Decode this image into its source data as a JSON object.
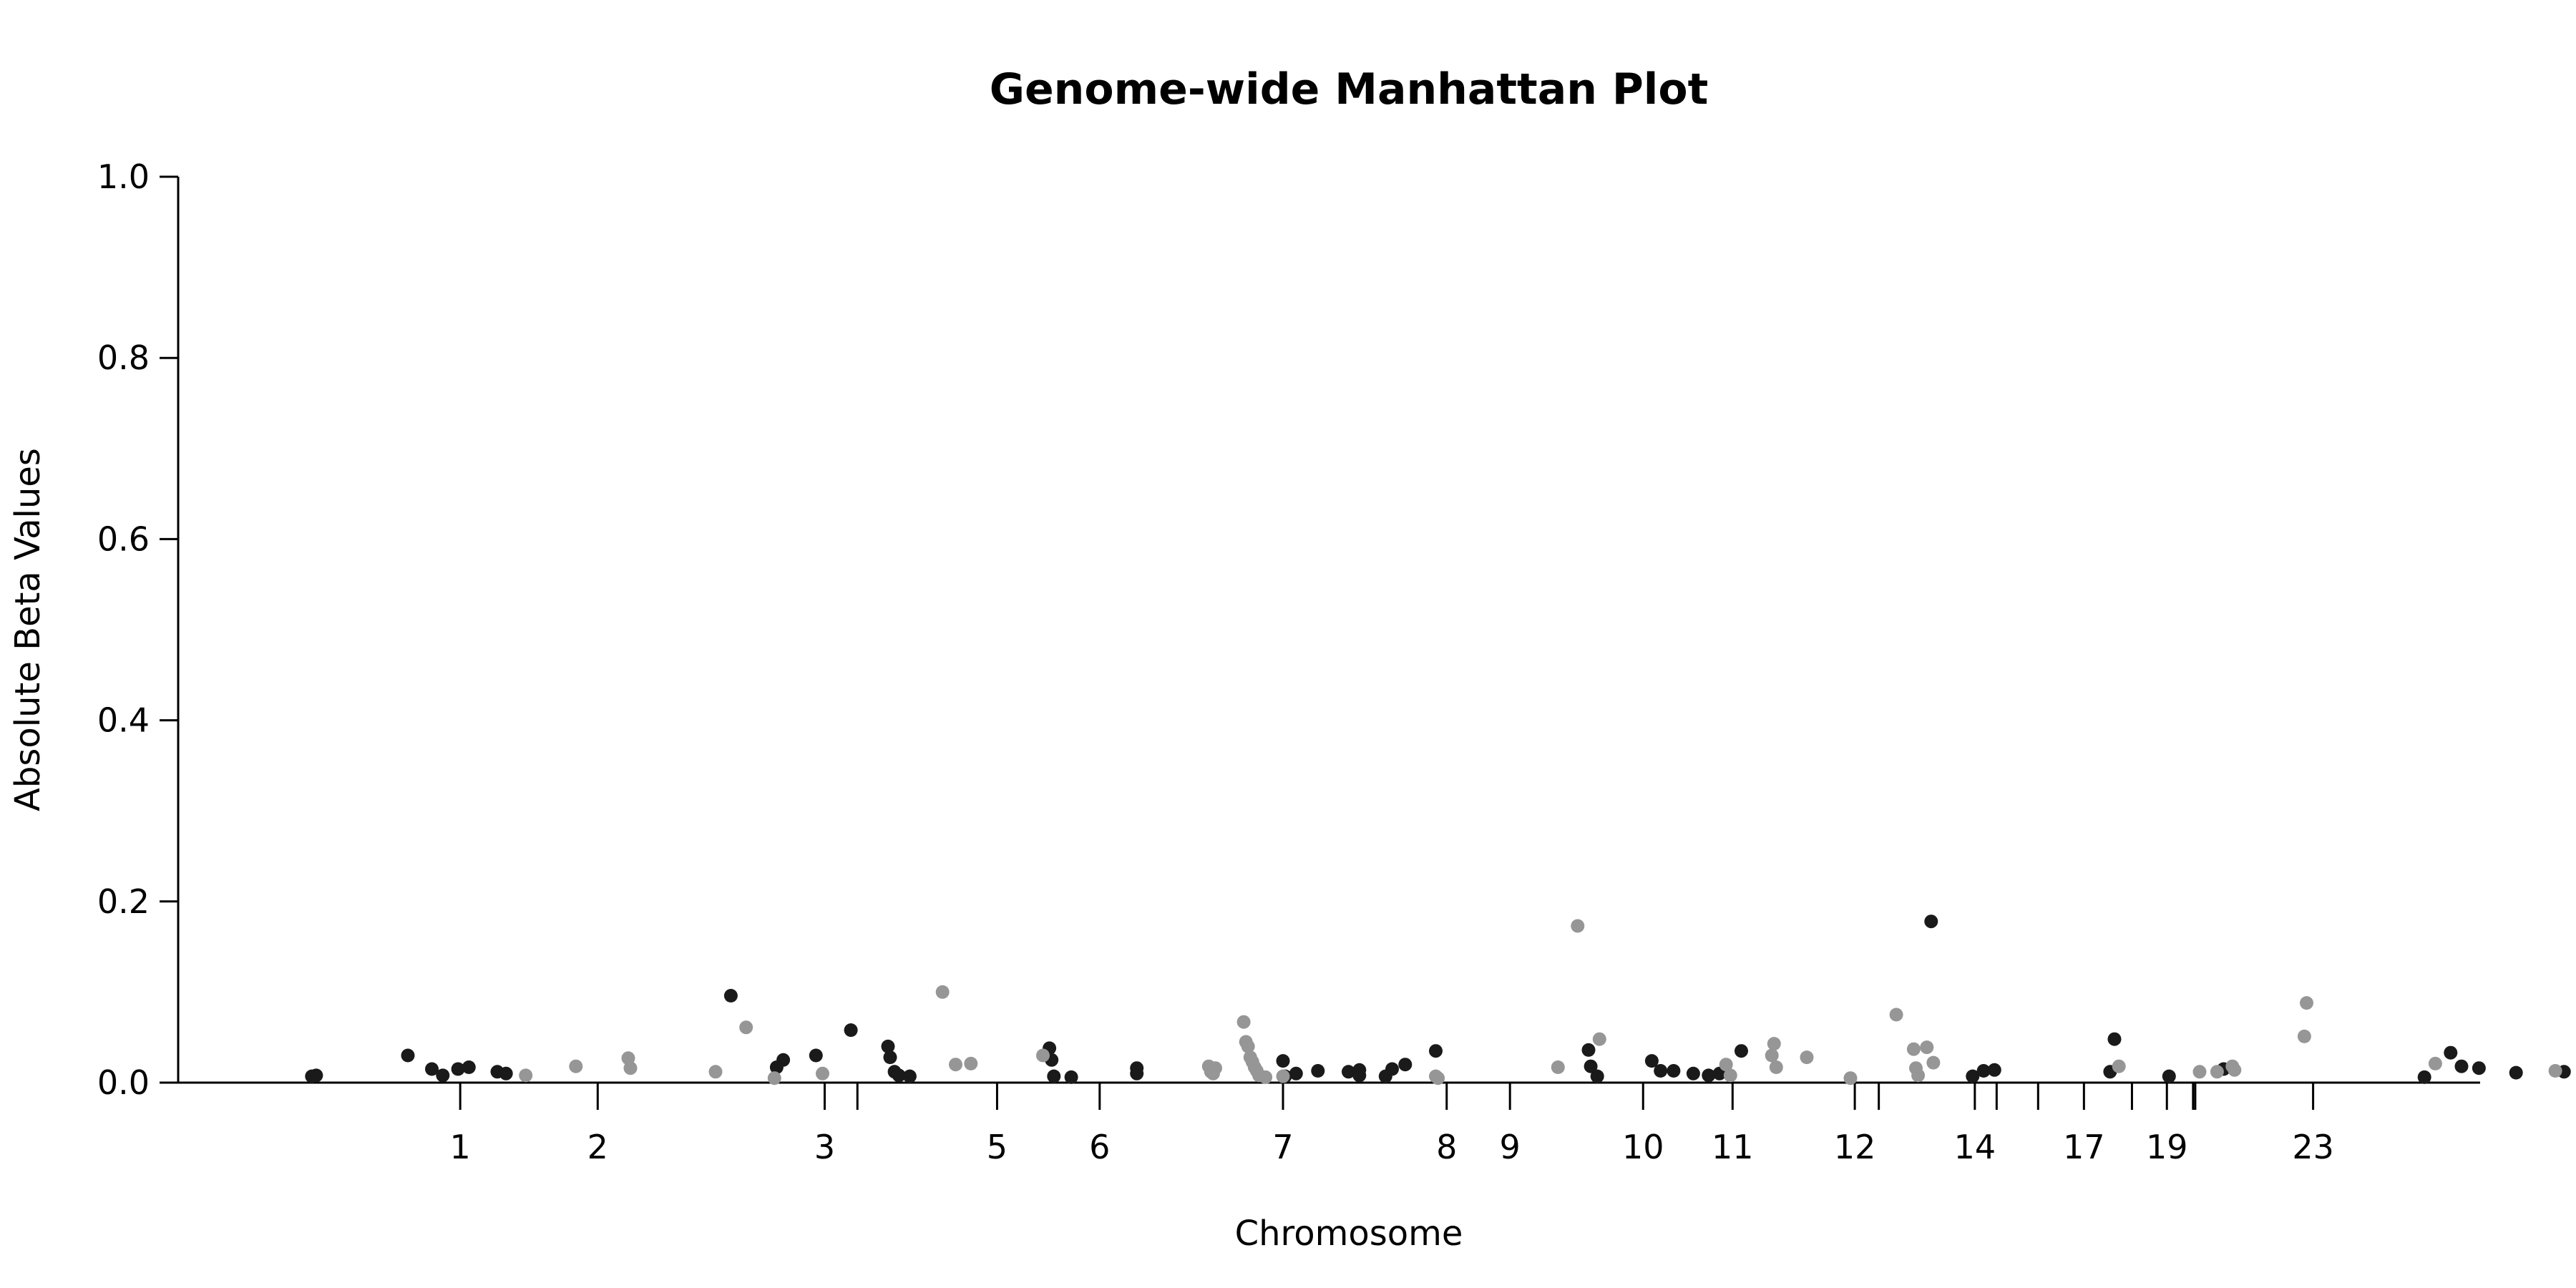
{
  "chart_data": {
    "type": "scatter",
    "title": "Genome-wide Manhattan Plot",
    "xlabel": "Chromosome",
    "ylabel": "Absolute Beta Values",
    "ylim": [
      0,
      1.0
    ],
    "yticks": [
      "0.0",
      "0.2",
      "0.4",
      "0.6",
      "0.8",
      "1.0"
    ],
    "grid": false,
    "legend": "none",
    "colors": {
      "dark": "#1a1a1a",
      "light": "#969696",
      "axis": "#000000"
    },
    "xticks": [
      {
        "label": "1",
        "pos": 0.083
      },
      {
        "label": "2",
        "pos": 0.146
      },
      {
        "label": "3",
        "pos": 0.25
      },
      {
        "label": "",
        "pos": 0.265
      },
      {
        "label": "5",
        "pos": 0.329
      },
      {
        "label": "6",
        "pos": 0.376
      },
      {
        "label": "7",
        "pos": 0.46
      },
      {
        "label": "8",
        "pos": 0.535
      },
      {
        "label": "9",
        "pos": 0.564
      },
      {
        "label": "10",
        "pos": 0.625
      },
      {
        "label": "11",
        "pos": 0.666
      },
      {
        "label": "12",
        "pos": 0.722
      },
      {
        "label": "",
        "pos": 0.733
      },
      {
        "label": "14",
        "pos": 0.777
      },
      {
        "label": "",
        "pos": 0.787
      },
      {
        "label": "",
        "pos": 0.806
      },
      {
        "label": "17",
        "pos": 0.827
      },
      {
        "label": "",
        "pos": 0.849
      },
      {
        "label": "19",
        "pos": 0.865
      },
      {
        "label": "",
        "pos": 0.877
      },
      {
        "label": "",
        "pos": 0.878
      },
      {
        "label": "23",
        "pos": 0.932
      }
    ],
    "series": [
      {
        "color": "dark",
        "points": [
          [
            0.015,
            0.007
          ],
          [
            0.017,
            0.008
          ],
          [
            0.059,
            0.03
          ],
          [
            0.07,
            0.015
          ],
          [
            0.075,
            0.008
          ],
          [
            0.082,
            0.015
          ],
          [
            0.087,
            0.017
          ],
          [
            0.1,
            0.012
          ],
          [
            0.104,
            0.01
          ],
          [
            0.207,
            0.096
          ],
          [
            0.228,
            0.017
          ],
          [
            0.231,
            0.025
          ],
          [
            0.246,
            0.03
          ],
          [
            0.262,
            0.058
          ],
          [
            0.279,
            0.04
          ],
          [
            0.28,
            0.028
          ],
          [
            0.282,
            0.012
          ],
          [
            0.284,
            0.008
          ],
          [
            0.289,
            0.007
          ],
          [
            0.353,
            0.038
          ],
          [
            0.354,
            0.025
          ],
          [
            0.355,
            0.007
          ],
          [
            0.363,
            0.006
          ],
          [
            0.393,
            0.01
          ],
          [
            0.393,
            0.016
          ],
          [
            0.46,
            0.024
          ],
          [
            0.461,
            0.007
          ],
          [
            0.466,
            0.01
          ],
          [
            0.476,
            0.013
          ],
          [
            0.49,
            0.012
          ],
          [
            0.495,
            0.014
          ],
          [
            0.495,
            0.008
          ],
          [
            0.507,
            0.007
          ],
          [
            0.51,
            0.015
          ],
          [
            0.516,
            0.02
          ],
          [
            0.53,
            0.035
          ],
          [
            0.6,
            0.036
          ],
          [
            0.601,
            0.018
          ],
          [
            0.604,
            0.007
          ],
          [
            0.629,
            0.024
          ],
          [
            0.633,
            0.013
          ],
          [
            0.639,
            0.013
          ],
          [
            0.648,
            0.01
          ],
          [
            0.655,
            0.008
          ],
          [
            0.66,
            0.01
          ],
          [
            0.67,
            0.035
          ],
          [
            0.757,
            0.178
          ],
          [
            0.776,
            0.007
          ],
          [
            0.781,
            0.013
          ],
          [
            0.786,
            0.014
          ],
          [
            0.839,
            0.012
          ],
          [
            0.841,
            0.048
          ],
          [
            0.866,
            0.007
          ],
          [
            0.891,
            0.015
          ],
          [
            0.983,
            0.006
          ],
          [
            0.995,
            0.033
          ],
          [
            1.0,
            0.018
          ],
          [
            1.008,
            0.016
          ],
          [
            1.025,
            0.011
          ],
          [
            1.047,
            0.012
          ],
          [
            1.105,
            0.006
          ],
          [
            1.117,
            0.073
          ],
          [
            1.141,
            0.006
          ],
          [
            1.142,
            0.052
          ],
          [
            1.143,
            0.008
          ],
          [
            1.236,
            0.013
          ],
          [
            1.237,
            0.006
          ]
        ]
      },
      {
        "color": "light",
        "points": [
          [
            0.113,
            0.008
          ],
          [
            0.136,
            0.018
          ],
          [
            0.16,
            0.027
          ],
          [
            0.161,
            0.016
          ],
          [
            0.2,
            0.012
          ],
          [
            0.214,
            0.061
          ],
          [
            0.227,
            0.005
          ],
          [
            0.249,
            0.01
          ],
          [
            0.304,
            0.1
          ],
          [
            0.31,
            0.02
          ],
          [
            0.317,
            0.021
          ],
          [
            0.35,
            0.03
          ],
          [
            0.426,
            0.018
          ],
          [
            0.427,
            0.012
          ],
          [
            0.428,
            0.01
          ],
          [
            0.429,
            0.016
          ],
          [
            0.442,
            0.067
          ],
          [
            0.443,
            0.045
          ],
          [
            0.444,
            0.04
          ],
          [
            0.445,
            0.028
          ],
          [
            0.446,
            0.023
          ],
          [
            0.447,
            0.017
          ],
          [
            0.448,
            0.013
          ],
          [
            0.449,
            0.008
          ],
          [
            0.452,
            0.006
          ],
          [
            0.46,
            0.007
          ],
          [
            0.53,
            0.007
          ],
          [
            0.531,
            0.005
          ],
          [
            0.586,
            0.017
          ],
          [
            0.595,
            0.173
          ],
          [
            0.605,
            0.048
          ],
          [
            0.663,
            0.02
          ],
          [
            0.665,
            0.008
          ],
          [
            0.684,
            0.03
          ],
          [
            0.685,
            0.043
          ],
          [
            0.686,
            0.017
          ],
          [
            0.7,
            0.028
          ],
          [
            0.72,
            0.005
          ],
          [
            0.741,
            0.075
          ],
          [
            0.749,
            0.037
          ],
          [
            0.75,
            0.016
          ],
          [
            0.751,
            0.008
          ],
          [
            0.755,
            0.039
          ],
          [
            0.758,
            0.022
          ],
          [
            0.843,
            0.018
          ],
          [
            0.88,
            0.012
          ],
          [
            0.888,
            0.012
          ],
          [
            0.895,
            0.018
          ],
          [
            0.896,
            0.014
          ],
          [
            0.928,
            0.051
          ],
          [
            0.929,
            0.088
          ],
          [
            0.988,
            0.021
          ],
          [
            1.043,
            0.013
          ],
          [
            1.057,
            0.006
          ],
          [
            1.068,
            0.032
          ],
          [
            1.095,
            0.012
          ],
          [
            1.125,
            0.03
          ],
          [
            1.131,
            0.006
          ],
          [
            1.132,
            0.017
          ],
          [
            1.155,
            0.03
          ],
          [
            1.16,
            0.025
          ],
          [
            1.161,
            0.032
          ],
          [
            1.162,
            0.005
          ]
        ]
      }
    ]
  }
}
